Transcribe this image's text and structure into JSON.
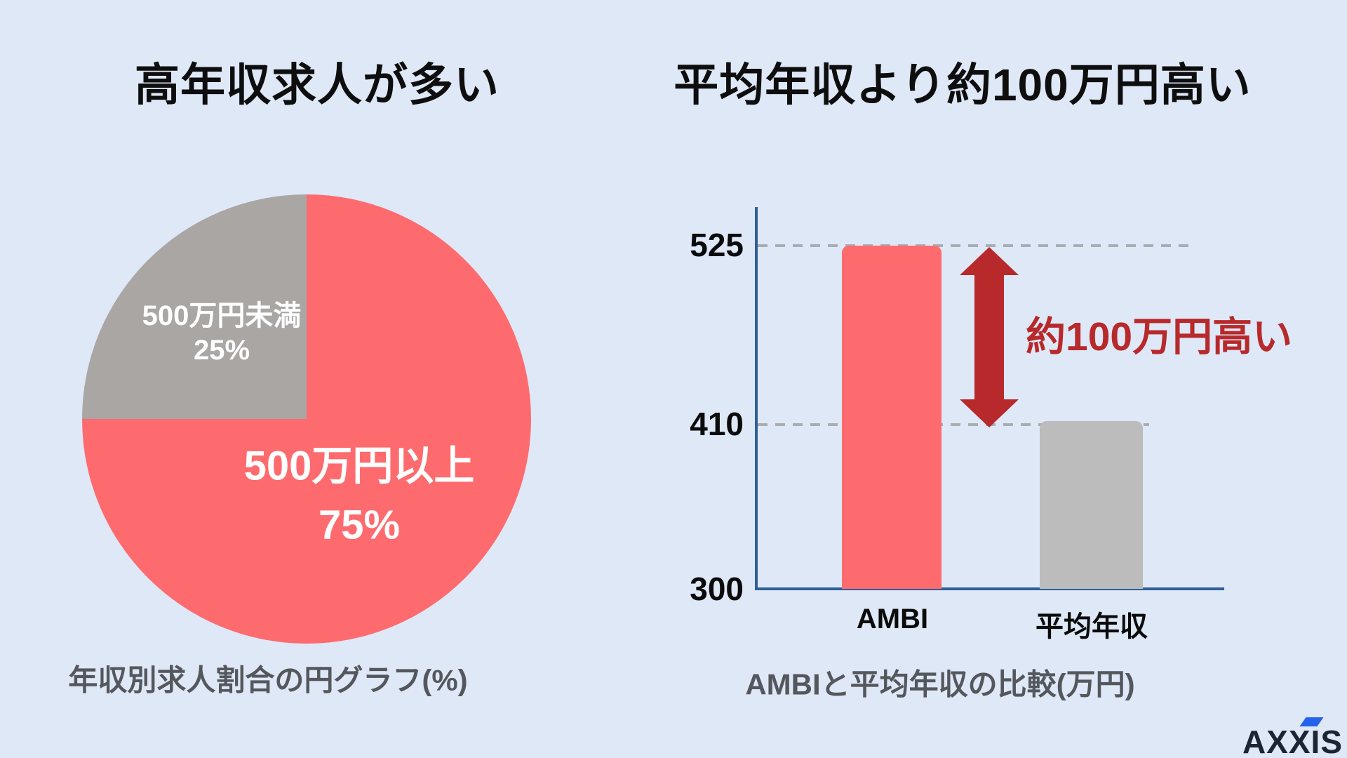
{
  "page": {
    "background": "#dfe8f7"
  },
  "branding": {
    "logo_text": "AXXIS",
    "logo_color": "#1d2533",
    "accent_color": "#2563eb"
  },
  "chart_data": [
    {
      "type": "pie",
      "title": "高年収求人が多い",
      "caption": "年収別求人割合の円グラフ(%)",
      "start_angle": "top",
      "direction": "clockwise",
      "labels_inside": true,
      "label_color": "#ffffff",
      "slices": [
        {
          "label": "500万円以上",
          "value": 75,
          "display": "75%",
          "color": "#fd6b6f"
        },
        {
          "label": "500万円未満",
          "value": 25,
          "display": "25%",
          "color": "#a9a6a4"
        }
      ]
    },
    {
      "type": "bar",
      "title": "平均年収より約100万円高い",
      "caption": "AMBIと平均年収の比較(万円)",
      "categories": [
        "AMBI",
        "平均年収"
      ],
      "values": [
        525,
        410
      ],
      "unit": "万円",
      "colors": [
        "#fd6b6f",
        "#bcbcbc"
      ],
      "y_ticks": [
        "525",
        "410",
        "300"
      ],
      "ylim": [
        300,
        560
      ],
      "gridlines": [
        525,
        410
      ],
      "gridline_style": "dashed",
      "gridline_color": "#a9adb3",
      "axis_color": "#2e5f96",
      "annotation": {
        "text": "約100万円高い",
        "color": "#b7292a",
        "arrow": "vertical-double"
      }
    }
  ]
}
